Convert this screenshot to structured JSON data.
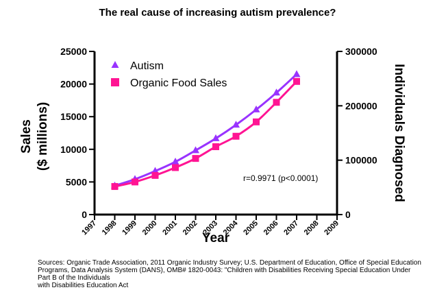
{
  "chart_data": {
    "type": "line",
    "title": "The real cause of increasing autism prevalence?",
    "xlabel": "Year",
    "ylabel_left_lines": [
      "Sales",
      "($ millions)"
    ],
    "ylabel_right": "Individuals Diagnosed",
    "x_ticks": [
      1997,
      1998,
      1999,
      2000,
      2001,
      2002,
      2003,
      2004,
      2005,
      2006,
      2007,
      2008,
      2009
    ],
    "xlim": [
      1997,
      2009
    ],
    "ylim_left": [
      0,
      25000
    ],
    "ylim_right": [
      0,
      300000
    ],
    "left_ticks": [
      0,
      5000,
      10000,
      15000,
      20000,
      25000
    ],
    "right_ticks": [
      0,
      100000,
      200000,
      300000
    ],
    "series": [
      {
        "name": "Autism",
        "axis": "right",
        "marker": "triangle",
        "color": "#9933ff",
        "x": [
          1998,
          1999,
          2000,
          2001,
          2002,
          2003,
          2004,
          2005,
          2006,
          2007
        ],
        "values": [
          53000,
          65000,
          80000,
          97000,
          118000,
          140000,
          165000,
          193000,
          224000,
          258000
        ]
      },
      {
        "name": "Organic Food Sales",
        "axis": "left",
        "marker": "square",
        "color": "#ff1493",
        "x": [
          1998,
          1999,
          2000,
          2001,
          2002,
          2003,
          2004,
          2005,
          2006,
          2007
        ],
        "values": [
          4300,
          5000,
          6000,
          7200,
          8600,
          10400,
          12000,
          14200,
          17200,
          20400
        ]
      }
    ],
    "legend_position": "top-left",
    "annotation": "r=0.9971 (p<0.0001)",
    "source_note": "Sources: Organic Trade Association,  2011 Organic Industry Survey; U.S. Department of Education, Office of Special Education Programs, Data Analysis System (DANS), OMB# 1820-0043: \"Children with Disabilities Receiving Special Education Under Part B of the Individuals\nwith Disabilities Education Act"
  }
}
